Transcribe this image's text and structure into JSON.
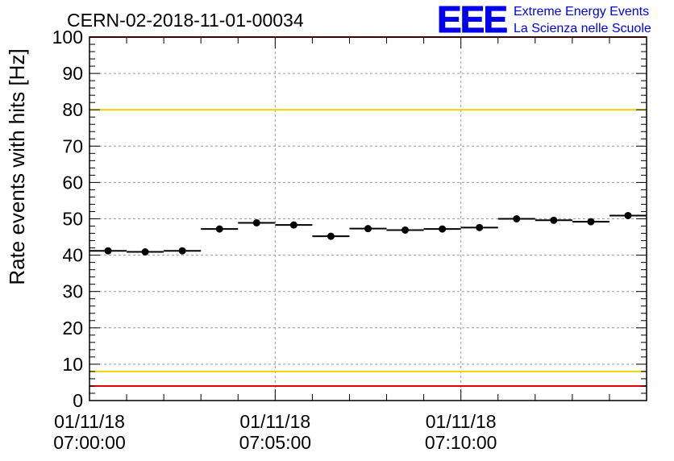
{
  "chart_data": {
    "type": "scatter",
    "title": "CERN-02-2018-11-01-00034",
    "ylabel": "Rate events with hits [Hz]",
    "xlabel": "",
    "ylim": [
      0,
      100
    ],
    "yticks": [
      "0",
      "10",
      "20",
      "30",
      "40",
      "50",
      "60",
      "70",
      "80",
      "90",
      "100"
    ],
    "xlim_minutes": [
      0,
      15
    ],
    "xticks": [
      {
        "date": "01/11/18",
        "time": "07:00:00",
        "minute": 0
      },
      {
        "date": "01/11/18",
        "time": "07:05:00",
        "minute": 5
      },
      {
        "date": "01/11/18",
        "time": "07:10:00",
        "minute": 10
      }
    ],
    "grid": true,
    "bin_width_minutes": 1,
    "series": [
      {
        "x_minutes": [
          0.5,
          1.5,
          2.5,
          3.5,
          4.5,
          5.5,
          6.5,
          7.5,
          8.5,
          9.5,
          10.5,
          11.5,
          12.5,
          13.5,
          14.5
        ],
        "values": [
          41.2,
          40.9,
          41.2,
          47.2,
          48.9,
          48.3,
          45.2,
          47.3,
          46.9,
          47.2,
          47.6,
          50.0,
          49.6,
          49.2,
          50.9
        ],
        "color": "#000000"
      }
    ],
    "reference_lines": [
      {
        "y": 80,
        "color": "#f0d000"
      },
      {
        "y": 8,
        "color": "#f0d000"
      },
      {
        "y": 4,
        "color": "#ee0000"
      },
      {
        "y": 100,
        "color": "#ee0000"
      }
    ]
  },
  "logo": {
    "mark": "EEE",
    "line1": "Extreme Energy Events",
    "line2": "La Scienza nelle Scuole"
  }
}
